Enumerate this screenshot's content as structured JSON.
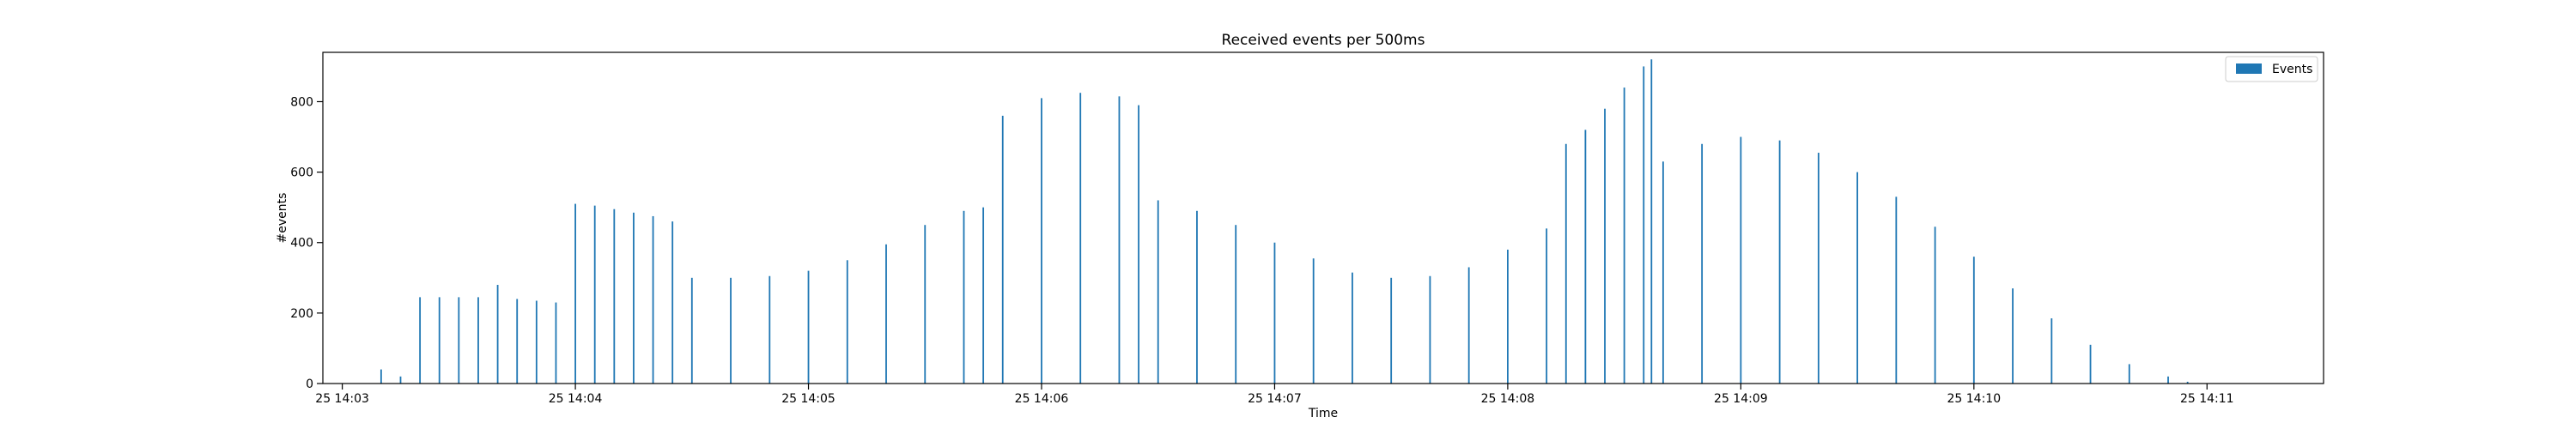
{
  "chart_data": {
    "type": "bar",
    "title": "Received events per 500ms",
    "xlabel": "Time",
    "ylabel": "#events",
    "ylim": [
      0,
      940
    ],
    "y_ticks": [
      0,
      200,
      400,
      600,
      800
    ],
    "x_range": [
      "14:02:55",
      "14:11:30"
    ],
    "x_ticks": [
      {
        "t": "14:03:00",
        "label": "25 14:03"
      },
      {
        "t": "14:04:00",
        "label": "25 14:04"
      },
      {
        "t": "14:05:00",
        "label": "25 14:05"
      },
      {
        "t": "14:06:00",
        "label": "25 14:06"
      },
      {
        "t": "14:07:00",
        "label": "25 14:07"
      },
      {
        "t": "14:08:00",
        "label": "25 14:08"
      },
      {
        "t": "14:09:00",
        "label": "25 14:09"
      },
      {
        "t": "14:10:00",
        "label": "25 14:10"
      },
      {
        "t": "14:11:00",
        "label": "25 14:11"
      }
    ],
    "bar_interval": "500ms",
    "legend": {
      "position": "top-right",
      "entries": [
        {
          "name": "Events",
          "color": "#1f77b4"
        }
      ]
    },
    "grid": false,
    "series": [
      {
        "name": "Events",
        "color": "#1f77b4",
        "values_note": "sampled every 5 seconds",
        "points": [
          [
            "14:03:05",
            0
          ],
          [
            "14:03:10",
            40
          ],
          [
            "14:03:15",
            20
          ],
          [
            "14:03:20",
            245
          ],
          [
            "14:03:25",
            245
          ],
          [
            "14:03:30",
            245
          ],
          [
            "14:03:35",
            245
          ],
          [
            "14:03:40",
            280
          ],
          [
            "14:03:45",
            240
          ],
          [
            "14:03:50",
            235
          ],
          [
            "14:03:55",
            230
          ],
          [
            "14:04:00",
            510
          ],
          [
            "14:04:05",
            505
          ],
          [
            "14:04:10",
            495
          ],
          [
            "14:04:15",
            485
          ],
          [
            "14:04:20",
            475
          ],
          [
            "14:04:25",
            460
          ],
          [
            "14:04:30",
            300
          ],
          [
            "14:04:40",
            300
          ],
          [
            "14:04:50",
            305
          ],
          [
            "14:05:00",
            320
          ],
          [
            "14:05:10",
            350
          ],
          [
            "14:05:20",
            395
          ],
          [
            "14:05:30",
            450
          ],
          [
            "14:05:40",
            490
          ],
          [
            "14:05:45",
            500
          ],
          [
            "14:05:50",
            760
          ],
          [
            "14:06:00",
            810
          ],
          [
            "14:06:10",
            825
          ],
          [
            "14:06:20",
            815
          ],
          [
            "14:06:25",
            790
          ],
          [
            "14:06:30",
            520
          ],
          [
            "14:06:40",
            490
          ],
          [
            "14:06:50",
            450
          ],
          [
            "14:07:00",
            400
          ],
          [
            "14:07:10",
            355
          ],
          [
            "14:07:20",
            315
          ],
          [
            "14:07:30",
            300
          ],
          [
            "14:07:40",
            305
          ],
          [
            "14:07:50",
            330
          ],
          [
            "14:08:00",
            380
          ],
          [
            "14:08:10",
            440
          ],
          [
            "14:08:15",
            680
          ],
          [
            "14:08:20",
            720
          ],
          [
            "14:08:25",
            780
          ],
          [
            "14:08:30",
            840
          ],
          [
            "14:08:35",
            900
          ],
          [
            "14:08:37",
            920
          ],
          [
            "14:08:40",
            630
          ],
          [
            "14:08:50",
            680
          ],
          [
            "14:09:00",
            700
          ],
          [
            "14:09:10",
            690
          ],
          [
            "14:09:20",
            655
          ],
          [
            "14:09:30",
            600
          ],
          [
            "14:09:40",
            530
          ],
          [
            "14:09:50",
            445
          ],
          [
            "14:10:00",
            360
          ],
          [
            "14:10:10",
            270
          ],
          [
            "14:10:20",
            185
          ],
          [
            "14:10:30",
            110
          ],
          [
            "14:10:40",
            55
          ],
          [
            "14:10:50",
            20
          ],
          [
            "14:10:55",
            5
          ],
          [
            "14:11:00",
            0
          ]
        ]
      }
    ]
  }
}
